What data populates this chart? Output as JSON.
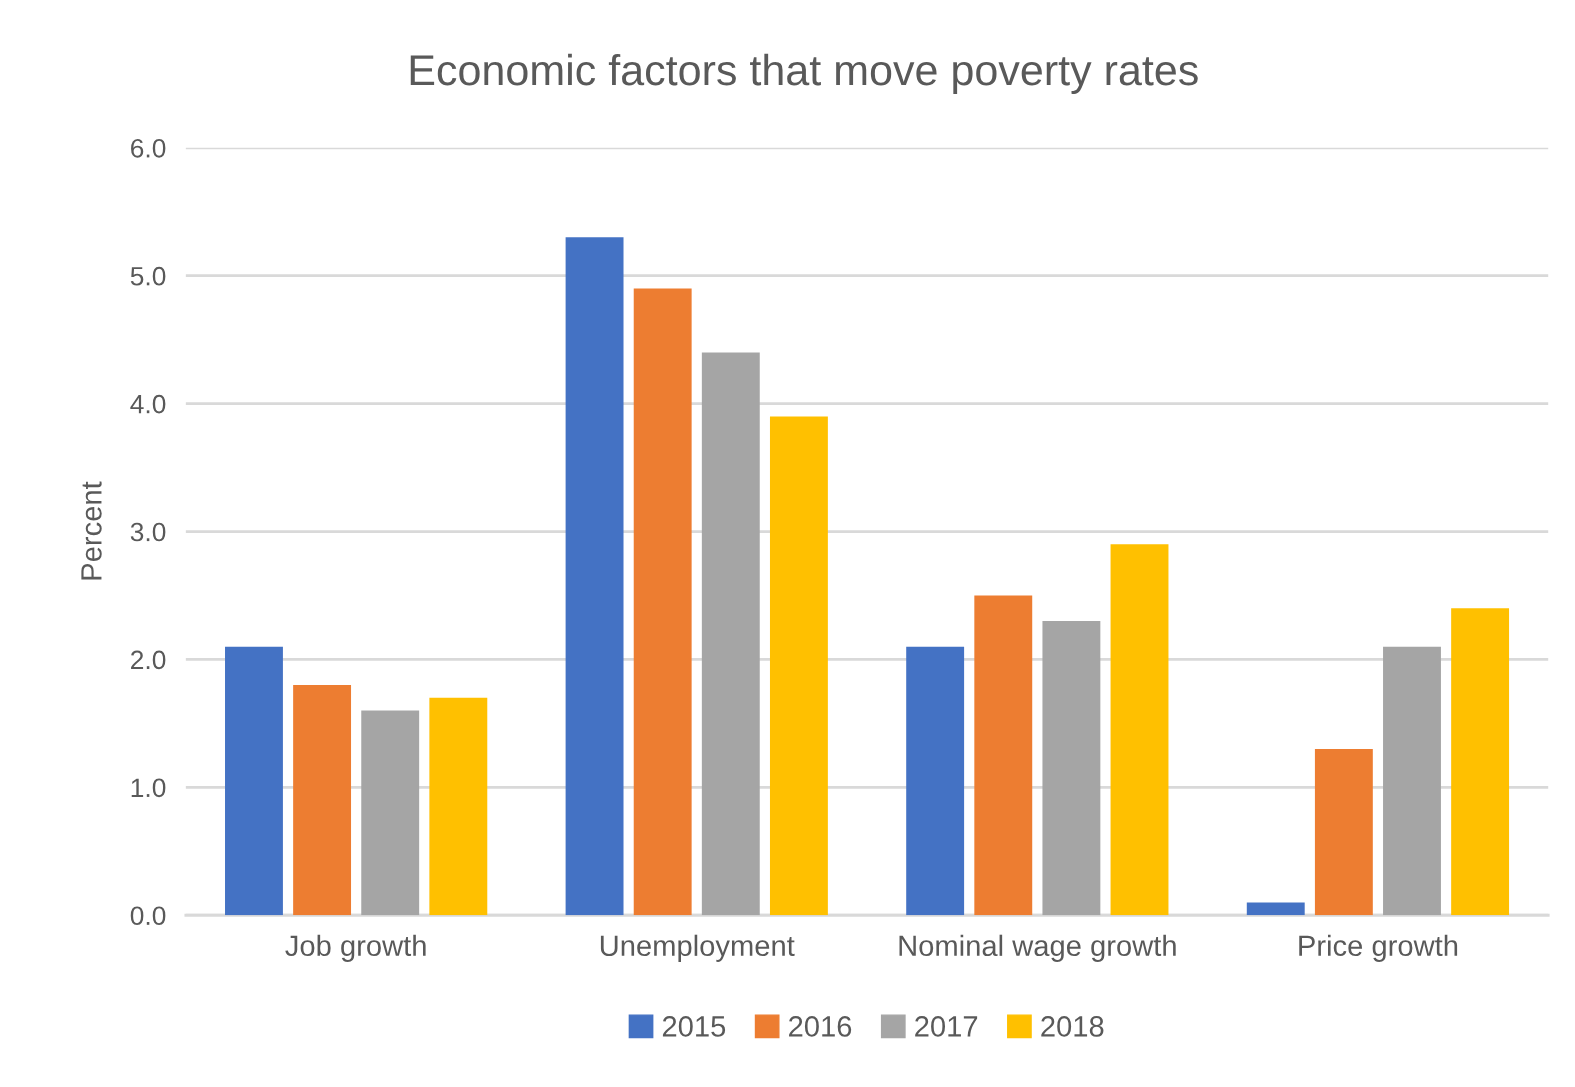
{
  "chart_data": {
    "type": "bar",
    "title": "Economic factors that move poverty rates",
    "ylabel": "Percent",
    "categories": [
      "Job growth",
      "Unemployment",
      "Nominal wage growth",
      "Price growth"
    ],
    "series": [
      {
        "name": "2015",
        "color": "#4472c4",
        "values": [
          2.1,
          5.3,
          2.1,
          0.1
        ]
      },
      {
        "name": "2016",
        "color": "#ed7d31",
        "values": [
          1.8,
          4.9,
          2.5,
          1.3
        ]
      },
      {
        "name": "2017",
        "color": "#a5a5a5",
        "values": [
          1.6,
          4.4,
          2.3,
          2.1
        ]
      },
      {
        "name": "2018",
        "color": "#ffc000",
        "values": [
          1.7,
          3.9,
          2.9,
          2.4
        ]
      }
    ],
    "ylim": [
      0,
      6
    ],
    "yticks": [
      {
        "value": 0,
        "label": "0.0"
      },
      {
        "value": 1,
        "label": "1.0"
      },
      {
        "value": 2,
        "label": "2.0"
      },
      {
        "value": 3,
        "label": "3.0"
      },
      {
        "value": 4,
        "label": "4.0"
      },
      {
        "value": 5,
        "label": "5.0"
      },
      {
        "value": 6,
        "label": "6.0"
      }
    ],
    "grid": "y",
    "legend": "bottom"
  }
}
